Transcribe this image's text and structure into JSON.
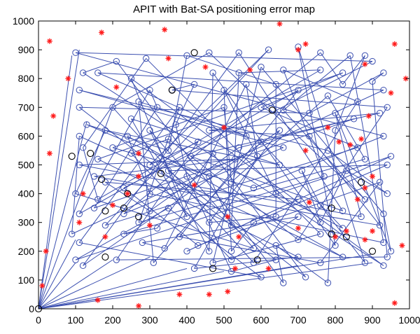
{
  "chart_data": {
    "type": "scatter",
    "title": "APIT with Bat-SA positioning error map",
    "xlabel": "",
    "ylabel": "",
    "xlim": [
      0,
      1000
    ],
    "ylim": [
      0,
      1000
    ],
    "xticks": [
      "0",
      "100",
      "200",
      "300",
      "400",
      "500",
      "600",
      "700",
      "800",
      "900",
      "1000"
    ],
    "yticks": [
      "0",
      "100",
      "200",
      "300",
      "400",
      "500",
      "600",
      "700",
      "800",
      "900",
      "1000"
    ],
    "grid": false,
    "legend": "none",
    "colors": {
      "error_line": "#3b4fb0",
      "estimate_marker": "#3b4fb0",
      "anchor_marker": "#ff1a1a",
      "unknown_node_marker": "#000000"
    },
    "series": [
      {
        "marker": "red-asterisk",
        "points": [
          [
            30,
            930
          ],
          [
            170,
            960
          ],
          [
            340,
            970
          ],
          [
            650,
            990
          ],
          [
            720,
            920
          ],
          [
            960,
            920
          ],
          [
            990,
            800
          ],
          [
            80,
            800
          ],
          [
            210,
            770
          ],
          [
            40,
            670
          ],
          [
            30,
            540
          ],
          [
            120,
            400
          ],
          [
            110,
            300
          ],
          [
            180,
            250
          ],
          [
            20,
            200
          ],
          [
            10,
            80
          ],
          [
            160,
            30
          ],
          [
            270,
            10
          ],
          [
            380,
            50
          ],
          [
            460,
            50
          ],
          [
            510,
            60
          ],
          [
            620,
            140
          ],
          [
            530,
            140
          ],
          [
            950,
            750
          ],
          [
            880,
            850
          ],
          [
            870,
            590
          ],
          [
            840,
            570
          ],
          [
            860,
            380
          ],
          [
            900,
            270
          ],
          [
            880,
            240
          ],
          [
            980,
            220
          ],
          [
            960,
            20
          ],
          [
            350,
            870
          ],
          [
            450,
            840
          ],
          [
            570,
            830
          ],
          [
            700,
            900
          ],
          [
            270,
            540
          ],
          [
            300,
            290
          ],
          [
            510,
            320
          ],
          [
            540,
            250
          ],
          [
            700,
            280
          ],
          [
            730,
            370
          ],
          [
            800,
            250
          ],
          [
            830,
            270
          ],
          [
            880,
            420
          ],
          [
            900,
            460
          ],
          [
            810,
            580
          ],
          [
            780,
            630
          ],
          [
            500,
            630
          ],
          [
            420,
            430
          ],
          [
            270,
            460
          ],
          [
            240,
            400
          ],
          [
            200,
            360
          ],
          [
            890,
            670
          ],
          [
            720,
            550
          ]
        ]
      },
      {
        "marker": "blue-circle",
        "points": [
          [
            100,
            890
          ],
          [
            210,
            860
          ],
          [
            290,
            870
          ],
          [
            400,
            880
          ],
          [
            460,
            890
          ],
          [
            540,
            890
          ],
          [
            620,
            900
          ],
          [
            700,
            910
          ],
          [
            760,
            890
          ],
          [
            840,
            880
          ],
          [
            880,
            880
          ],
          [
            900,
            860
          ],
          [
            930,
            820
          ],
          [
            900,
            790
          ],
          [
            930,
            760
          ],
          [
            940,
            700
          ],
          [
            920,
            680
          ],
          [
            930,
            600
          ],
          [
            950,
            530
          ],
          [
            940,
            500
          ],
          [
            920,
            440
          ],
          [
            940,
            400
          ],
          [
            930,
            330
          ],
          [
            920,
            290
          ],
          [
            930,
            230
          ],
          [
            950,
            200
          ],
          [
            940,
            180
          ],
          [
            930,
            150
          ],
          [
            780,
            90
          ],
          [
            720,
            110
          ],
          [
            660,
            90
          ],
          [
            600,
            110
          ],
          [
            520,
            130
          ],
          [
            420,
            140
          ],
          [
            310,
            160
          ],
          [
            210,
            170
          ],
          [
            120,
            150
          ],
          [
            100,
            170
          ],
          [
            110,
            230
          ],
          [
            90,
            260
          ],
          [
            110,
            330
          ],
          [
            100,
            400
          ],
          [
            110,
            500
          ],
          [
            120,
            560
          ],
          [
            110,
            600
          ],
          [
            130,
            640
          ],
          [
            110,
            700
          ],
          [
            110,
            760
          ],
          [
            120,
            820
          ],
          [
            160,
            820
          ],
          [
            250,
            800
          ],
          [
            300,
            760
          ],
          [
            360,
            760
          ],
          [
            420,
            780
          ],
          [
            500,
            760
          ],
          [
            560,
            780
          ],
          [
            640,
            780
          ],
          [
            700,
            760
          ],
          [
            780,
            740
          ],
          [
            860,
            720
          ],
          [
            850,
            660
          ],
          [
            800,
            620
          ],
          [
            730,
            600
          ],
          [
            650,
            620
          ],
          [
            560,
            600
          ],
          [
            460,
            620
          ],
          [
            370,
            640
          ],
          [
            300,
            620
          ],
          [
            250,
            660
          ],
          [
            200,
            700
          ],
          [
            180,
            620
          ],
          [
            200,
            560
          ],
          [
            250,
            540
          ],
          [
            300,
            500
          ],
          [
            350,
            480
          ],
          [
            400,
            460
          ],
          [
            460,
            460
          ],
          [
            520,
            440
          ],
          [
            580,
            420
          ],
          [
            640,
            400
          ],
          [
            700,
            380
          ],
          [
            760,
            360
          ],
          [
            820,
            340
          ],
          [
            870,
            320
          ],
          [
            820,
            280
          ],
          [
            760,
            260
          ],
          [
            700,
            240
          ],
          [
            640,
            220
          ],
          [
            580,
            210
          ],
          [
            520,
            200
          ],
          [
            460,
            200
          ],
          [
            400,
            200
          ],
          [
            340,
            210
          ],
          [
            280,
            230
          ],
          [
            230,
            260
          ],
          [
            180,
            290
          ],
          [
            160,
            380
          ],
          [
            180,
            440
          ],
          [
            230,
            420
          ],
          [
            300,
            400
          ],
          [
            350,
            350
          ],
          [
            400,
            320
          ],
          [
            460,
            300
          ],
          [
            520,
            290
          ],
          [
            580,
            300
          ],
          [
            640,
            320
          ],
          [
            700,
            320
          ],
          [
            760,
            300
          ],
          [
            800,
            220
          ],
          [
            820,
            180
          ],
          [
            880,
            160
          ],
          [
            760,
            160
          ],
          [
            700,
            180
          ],
          [
            640,
            170
          ],
          [
            580,
            160
          ],
          [
            520,
            170
          ],
          [
            470,
            160
          ],
          [
            430,
            220
          ],
          [
            380,
            250
          ],
          [
            320,
            280
          ],
          [
            270,
            300
          ],
          [
            230,
            330
          ],
          [
            350,
            550
          ],
          [
            410,
            530
          ],
          [
            470,
            540
          ],
          [
            530,
            520
          ],
          [
            590,
            530
          ],
          [
            650,
            500
          ],
          [
            710,
            480
          ],
          [
            770,
            460
          ],
          [
            830,
            480
          ],
          [
            880,
            520
          ],
          [
            860,
            560
          ],
          [
            600,
            700
          ],
          [
            660,
            690
          ],
          [
            730,
            680
          ],
          [
            800,
            680
          ],
          [
            380,
            700
          ],
          [
            320,
            700
          ],
          [
            270,
            720
          ],
          [
            500,
            700
          ],
          [
            470,
            820
          ],
          [
            540,
            820
          ],
          [
            600,
            840
          ],
          [
            660,
            830
          ],
          [
            760,
            830
          ],
          [
            820,
            820
          ],
          [
            820,
            780
          ],
          [
            780,
            550
          ],
          [
            600,
            580
          ],
          [
            660,
            560
          ],
          [
            540,
            560
          ],
          [
            430,
            580
          ],
          [
            350,
            590
          ],
          [
            240,
            600
          ],
          [
            160,
            520
          ],
          [
            150,
            460
          ],
          [
            150,
            350
          ],
          [
            300,
            340
          ],
          [
            880,
            380
          ]
        ]
      },
      {
        "marker": "black-circle",
        "points": [
          [
            0,
            0
          ],
          [
            90,
            530
          ],
          [
            140,
            540
          ],
          [
            170,
            450
          ],
          [
            240,
            400
          ],
          [
            230,
            350
          ],
          [
            270,
            320
          ],
          [
            180,
            340
          ],
          [
            180,
            180
          ],
          [
            360,
            760
          ],
          [
            420,
            890
          ],
          [
            630,
            690
          ],
          [
            870,
            440
          ],
          [
            790,
            350
          ],
          [
            790,
            260
          ],
          [
            830,
            250
          ],
          [
            900,
            200
          ],
          [
            470,
            140
          ],
          [
            590,
            170
          ],
          [
            330,
            470
          ]
        ]
      }
    ]
  }
}
